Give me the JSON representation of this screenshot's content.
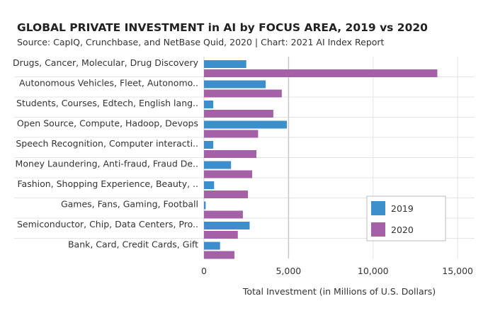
{
  "chart_data": {
    "type": "bar",
    "orientation": "horizontal",
    "title": "GLOBAL PRIVATE INVESTMENT in AI by FOCUS AREA, 2019 vs 2020",
    "subtitle": "Source: CapIQ, Crunchbase, and NetBase Quid, 2020 | Chart: 2021 AI Index Report",
    "xlabel": "Total Investment (in Millions of U.S. Dollars)",
    "ylabel": "",
    "xlim": [
      0,
      16000
    ],
    "xticks": [
      0,
      5000,
      10000,
      15000
    ],
    "xtick_labels": [
      "0",
      "5,000",
      "10,000",
      "15,000"
    ],
    "grid": true,
    "legend_position": "bottom-right",
    "categories": [
      "Drugs, Cancer, Molecular, Drug Discovery",
      "Autonomous Vehicles, Fleet, Autonomo..",
      "Students, Courses, Edtech, English lang..",
      "Open Source, Compute, Hadoop, Devops",
      "Speech Recognition, Computer interacti..",
      "Money Laundering, Anti-fraud, Fraud De..",
      "Fashion, Shopping Experience, Beauty, ..",
      "Games, Fans, Gaming, Football",
      "Semiconductor, Chip, Data Centers, Pro..",
      "Bank, Card, Credit Cards, Gift"
    ],
    "series": [
      {
        "name": "2019",
        "color": "#3d8fcc",
        "values": [
          2500,
          3650,
          550,
          4900,
          550,
          1600,
          600,
          100,
          2700,
          950
        ]
      },
      {
        "name": "2020",
        "color": "#a561a8",
        "values": [
          13800,
          4600,
          4100,
          3200,
          3100,
          2850,
          2600,
          2300,
          2000,
          1800
        ]
      }
    ]
  }
}
